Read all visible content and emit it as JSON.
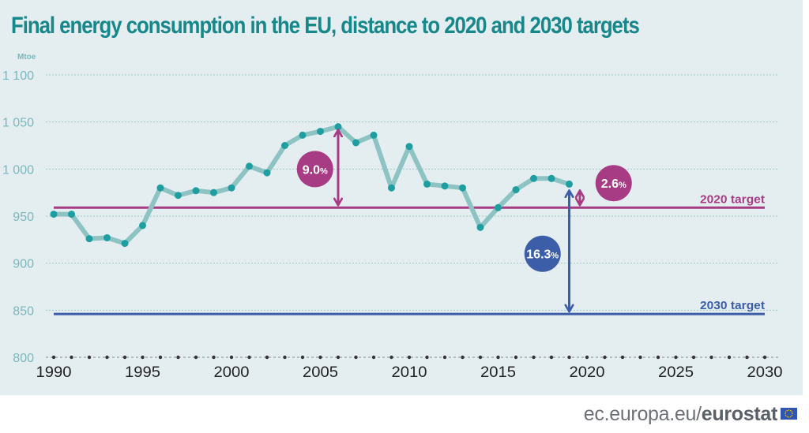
{
  "title": "Final energy consumption in the EU, distance to 2020 and 2030 targets",
  "footer": {
    "source_prefix": "ec.europa.eu/",
    "source_brand": "eurostat",
    "flag_icon": "eu-flag-icon"
  },
  "colors": {
    "title": "#17878a",
    "series_line": "#8ec3c4",
    "series_dot": "#1e9ea0",
    "target_2020": "#a73b84",
    "target_2030": "#3c5ea8",
    "axis_text": "#7ab8bb"
  },
  "chart_data": {
    "type": "line",
    "title": "Final energy consumption in the EU, distance to 2020 and 2030 targets",
    "xlabel": "",
    "ylabel": "Mtoe",
    "xlim": [
      1990,
      2030
    ],
    "ylim": [
      800,
      1100
    ],
    "grid": true,
    "x_ticks": [
      1990,
      1995,
      2000,
      2005,
      2010,
      2015,
      2020,
      2025,
      2030
    ],
    "x_tick_labels": [
      "1990",
      "1995",
      "2000",
      "2005",
      "2010",
      "2015",
      "2020",
      "2025",
      "2030"
    ],
    "y_ticks": [
      800,
      850,
      900,
      950,
      1000,
      1050,
      1100
    ],
    "y_tick_labels": [
      "800",
      "850",
      "900",
      "950",
      "1 000",
      "1 050",
      "1 100"
    ],
    "series": [
      {
        "name": "Final energy consumption",
        "x": [
          1990,
          1991,
          1992,
          1993,
          1994,
          1995,
          1996,
          1997,
          1998,
          1999,
          2000,
          2001,
          2002,
          2003,
          2004,
          2005,
          2006,
          2007,
          2008,
          2009,
          2010,
          2011,
          2012,
          2013,
          2014,
          2015,
          2016,
          2017,
          2018,
          2019
        ],
        "values": [
          952,
          952,
          926,
          927,
          921,
          940,
          980,
          972,
          977,
          975,
          980,
          1003,
          996,
          1025,
          1036,
          1040,
          1045,
          1028,
          1036,
          980,
          1024,
          984,
          982,
          980,
          938,
          959,
          978,
          990,
          990,
          984
        ]
      }
    ],
    "targets": [
      {
        "name": "2020 target",
        "label": "2020 target",
        "value": 959,
        "from": 1990,
        "to": 2030
      },
      {
        "name": "2030 target",
        "label": "2030 target",
        "value": 846,
        "from": 1990,
        "to": 2030
      }
    ],
    "annotations": [
      {
        "label": "9.0",
        "unit": "%",
        "kind": "distance",
        "year": 2006,
        "from": 1045,
        "to": 959,
        "target": "2020",
        "badge_year": 2004.7,
        "badge_value": 1000
      },
      {
        "label": "2.6",
        "unit": "%",
        "kind": "distance",
        "year": 2019.6,
        "from": 984,
        "to": 959,
        "target": "2020",
        "badge_year": 2021.5,
        "badge_value": 985
      },
      {
        "label": "16.3",
        "unit": "%",
        "kind": "distance",
        "year": 2019,
        "from": 984,
        "to": 846,
        "target": "2030",
        "badge_year": 2017.5,
        "badge_value": 910
      }
    ]
  }
}
